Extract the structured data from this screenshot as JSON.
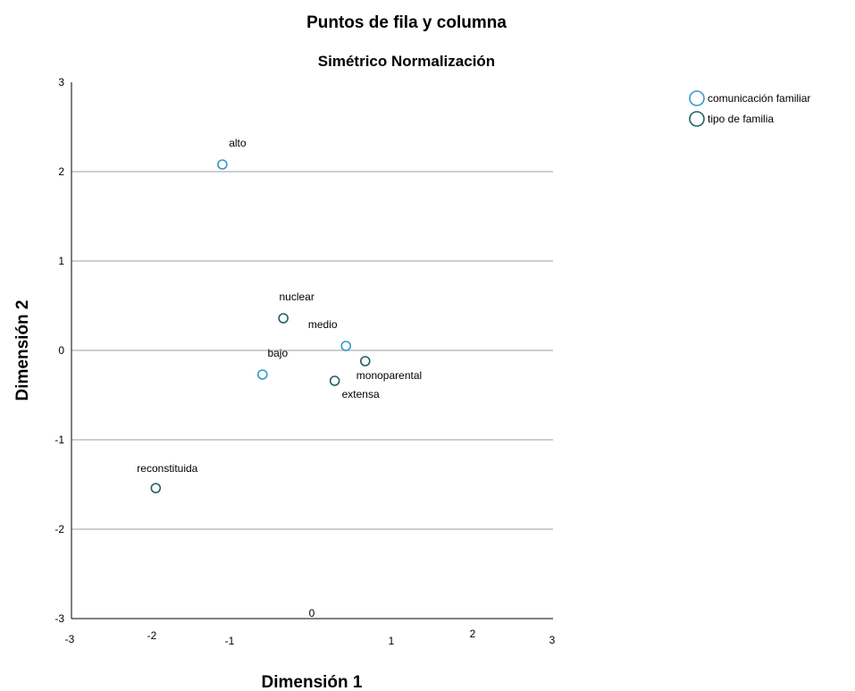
{
  "chart_data": {
    "type": "scatter",
    "title": "Puntos de fila y columna",
    "subtitle": "Simétrico Normalización",
    "xlabel": "Dimensión 1",
    "ylabel": "Dimensión 2",
    "xlim": [
      -3,
      3
    ],
    "ylim": [
      -3,
      3
    ],
    "grid": "horizontal",
    "legend_position": "top-right",
    "x_tick_labels": [
      "-3",
      "-2",
      "-1",
      "0",
      "1",
      "2",
      "3"
    ],
    "y_tick_labels": [
      "3",
      "2",
      "1",
      "0",
      "-1",
      "-2",
      "-3"
    ],
    "series": [
      {
        "name": "comunicación familiar",
        "color": "#3399cc",
        "points": [
          {
            "label": "alto",
            "x": -1.12,
            "y": 2.08
          },
          {
            "label": "medio",
            "x": 0.42,
            "y": 0.05
          },
          {
            "label": "bajo",
            "x": -0.62,
            "y": -0.27
          }
        ]
      },
      {
        "name": "tipo de familia",
        "color": "#1f5f66",
        "points": [
          {
            "label": "nuclear",
            "x": -0.36,
            "y": 0.36
          },
          {
            "label": "monoparental",
            "x": 0.66,
            "y": -0.12
          },
          {
            "label": "extensa",
            "x": 0.28,
            "y": -0.34
          },
          {
            "label": "reconstituida",
            "x": -1.95,
            "y": -1.54
          }
        ]
      }
    ]
  }
}
